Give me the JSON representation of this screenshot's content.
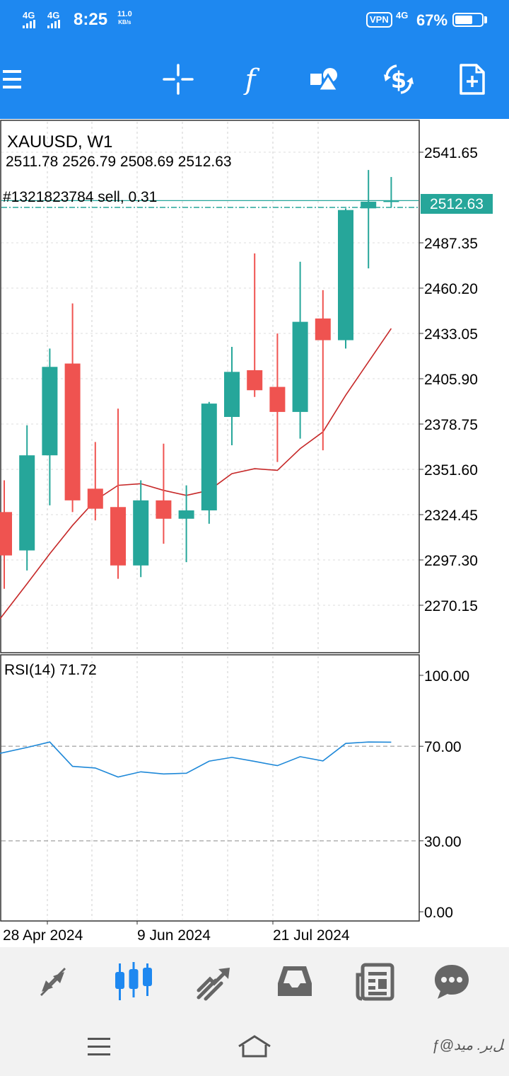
{
  "status_bar": {
    "signal1": "4G",
    "signal2": "4G",
    "time": "8:25",
    "speed_value": "11.0",
    "speed_unit": "KB/s",
    "vpn": "VPN",
    "signal3": "4G",
    "battery": "67%",
    "battery_level": 0.67
  },
  "toolbar": {
    "icons": [
      "menu-icon",
      "crosshair-icon",
      "indicators-icon",
      "objects-icon",
      "currency-icon",
      "new-order-icon"
    ]
  },
  "chart": {
    "symbol_title": "XAUUSD, W1",
    "ohlc": "2511.78 2526.79 2508.69 2512.63",
    "order_label": "#1321823784 sell, 0.31",
    "current_price": "2512.63",
    "rsi_label": "RSI(14) 71.72",
    "price_ticks": [
      "2541.65",
      "2487.35",
      "2460.20",
      "2433.05",
      "2405.90",
      "2378.75",
      "2351.60",
      "2324.45",
      "2297.30",
      "2270.15"
    ],
    "rsi_ticks": [
      "100.00",
      "70.00",
      "30.00",
      "0.00"
    ],
    "date_labels": [
      "28 Apr 2024",
      "9 Jun 2024",
      "21 Jul 2024"
    ],
    "colors": {
      "bull": "#26a69a",
      "bear": "#ef5350",
      "ma": "#c62828",
      "rsi": "#1e88d8",
      "accent": "#1e88f0",
      "price_tag": "#26a69a"
    }
  },
  "chart_data": {
    "type": "candlestick",
    "title": "XAUUSD, W1",
    "ylim": [
      2255,
      2570
    ],
    "candles": [
      {
        "o": 2326,
        "h": 2345,
        "l": 2280,
        "c": 2300
      },
      {
        "o": 2303,
        "h": 2378,
        "l": 2291,
        "c": 2360
      },
      {
        "o": 2360,
        "h": 2424,
        "l": 2330,
        "c": 2413
      },
      {
        "o": 2415,
        "h": 2451,
        "l": 2326,
        "c": 2333
      },
      {
        "o": 2340,
        "h": 2368,
        "l": 2321,
        "c": 2328
      },
      {
        "o": 2329,
        "h": 2388,
        "l": 2286,
        "c": 2294
      },
      {
        "o": 2294,
        "h": 2345,
        "l": 2287,
        "c": 2333
      },
      {
        "o": 2333,
        "h": 2367,
        "l": 2307,
        "c": 2322
      },
      {
        "o": 2322,
        "h": 2342,
        "l": 2296,
        "c": 2327
      },
      {
        "o": 2327,
        "h": 2392,
        "l": 2319,
        "c": 2391
      },
      {
        "o": 2383,
        "h": 2425,
        "l": 2366,
        "c": 2410
      },
      {
        "o": 2411,
        "h": 2481,
        "l": 2395,
        "c": 2399
      },
      {
        "o": 2401,
        "h": 2433,
        "l": 2356,
        "c": 2386
      },
      {
        "o": 2386,
        "h": 2476,
        "l": 2370,
        "c": 2440
      },
      {
        "o": 2442,
        "h": 2459,
        "l": 2363,
        "c": 2429
      },
      {
        "o": 2429,
        "h": 2508,
        "l": 2424,
        "c": 2507
      },
      {
        "o": 2508,
        "h": 2531,
        "l": 2472,
        "c": 2512
      },
      {
        "o": 2511.78,
        "h": 2526.79,
        "l": 2508.69,
        "c": 2512.63
      }
    ],
    "ma": [
      2262,
      2283,
      2301,
      2318,
      2333,
      2342,
      2343,
      2339,
      2336,
      2339,
      2349,
      2352,
      2351,
      2364,
      2374,
      2396,
      2416,
      2436
    ],
    "rsi": [
      67,
      69.5,
      71.8,
      61.5,
      60.8,
      57,
      59.2,
      58.3,
      58.6,
      63.7,
      65.3,
      63.6,
      61.8,
      65.6,
      63.8,
      71.2,
      71.8,
      71.72
    ],
    "rsi_period": 14
  },
  "bottom_nav": {
    "items": [
      "quotes-icon",
      "chart-icon",
      "trade-icon",
      "history-icon",
      "news-icon",
      "chat-icon"
    ]
  },
  "system_nav": {
    "watermark": "ƒ@ﻞﺑﺮ. ﻣﻴﺪ"
  }
}
